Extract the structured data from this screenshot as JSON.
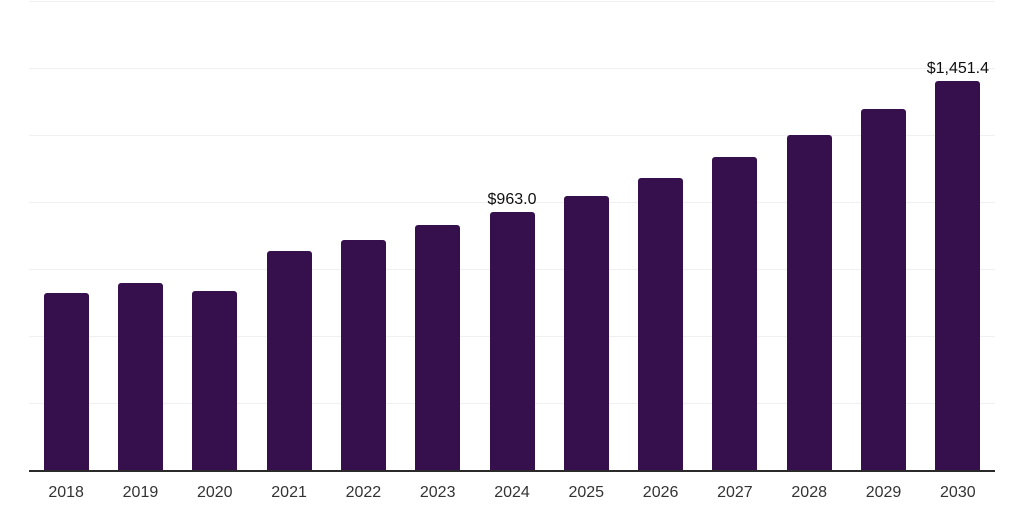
{
  "chart_data": {
    "type": "bar",
    "title": "",
    "xlabel": "",
    "ylabel": "",
    "categories": [
      "2018",
      "2019",
      "2020",
      "2021",
      "2022",
      "2023",
      "2024",
      "2025",
      "2026",
      "2027",
      "2028",
      "2029",
      "2030"
    ],
    "values": [
      662,
      697,
      669,
      817,
      858,
      914,
      963.0,
      1022,
      1088,
      1168,
      1250,
      1347,
      1451.4
    ],
    "point_labels": [
      {
        "category": "2024",
        "index": 6,
        "text": "$963.0"
      },
      {
        "category": "2030",
        "index": 12,
        "text": "$1,451.4"
      }
    ],
    "ylim": [
      0,
      1750
    ],
    "gridline_step": 250,
    "grid": true,
    "legend": false,
    "y_axis_labels_visible": false,
    "colors": {
      "bar": "#36104D",
      "gridline": "#F0F0F2",
      "axis_line": "#2A2A2A",
      "tick_label": "#333333",
      "point_label": "#0F0F0F",
      "background": "#FFFFFF"
    }
  }
}
